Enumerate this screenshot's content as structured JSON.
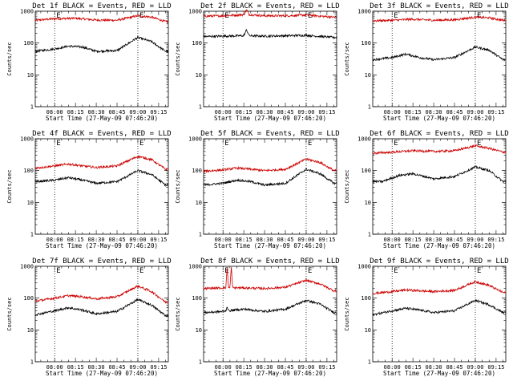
{
  "chart_data": [
    {
      "type": "line",
      "title": "Det 1f BLACK = Events, RED = LLD",
      "xlabel": "Start Time (27-May-09 07:46:20)",
      "ylabel": "Counts/sec",
      "ylog": true,
      "ylim": [
        1,
        1000
      ],
      "xlim": [
        "07:46",
        "09:22"
      ],
      "x_ticks": [
        "08:00",
        "08:15",
        "08:30",
        "08:45",
        "09:00",
        "09:15"
      ],
      "y_ticks": [
        "1",
        "10",
        "100",
        "1000"
      ],
      "markers": [
        "08:00",
        "09:00"
      ],
      "annotations": [
        "E",
        "E"
      ],
      "series": [
        {
          "color": "#cc0000",
          "points": [
            [
              "07:46",
              520
            ],
            [
              "08:00",
              580
            ],
            [
              "08:15",
              600
            ],
            [
              "08:30",
              530
            ],
            [
              "08:45",
              520
            ],
            [
              "09:00",
              720
            ],
            [
              "09:10",
              650
            ],
            [
              "09:20",
              470
            ]
          ]
        },
        {
          "color": "#000000",
          "points": [
            [
              "07:46",
              55
            ],
            [
              "08:00",
              65
            ],
            [
              "08:10",
              80
            ],
            [
              "08:20",
              75
            ],
            [
              "08:30",
              55
            ],
            [
              "08:45",
              58
            ],
            [
              "09:00",
              150
            ],
            [
              "09:10",
              110
            ],
            [
              "09:20",
              55
            ]
          ]
        }
      ]
    },
    {
      "type": "line",
      "title": "Det 2f BLACK = Events, RED = LLD",
      "xlabel": "Start Time (27-May-09 07:46:20)",
      "ylabel": "Counts/sec",
      "ylog": true,
      "ylim": [
        1,
        1000
      ],
      "xlim": [
        "07:46",
        "09:22"
      ],
      "x_ticks": [
        "08:00",
        "08:15",
        "08:30",
        "08:45",
        "09:00",
        "09:15"
      ],
      "y_ticks": [
        "1",
        "10",
        "100",
        "1000"
      ],
      "markers": [
        "08:00",
        "09:00"
      ],
      "annotations": [
        "E",
        "E"
      ],
      "series": [
        {
          "color": "#cc0000",
          "points": [
            [
              "07:46",
              700
            ],
            [
              "08:00",
              720
            ],
            [
              "08:15",
              780
            ],
            [
              "08:17",
              1100
            ],
            [
              "08:19",
              780
            ],
            [
              "08:30",
              720
            ],
            [
              "08:45",
              720
            ],
            [
              "09:00",
              760
            ],
            [
              "09:20",
              650
            ]
          ]
        },
        {
          "color": "#000000",
          "points": [
            [
              "07:46",
              160
            ],
            [
              "08:00",
              165
            ],
            [
              "08:15",
              170
            ],
            [
              "08:17",
              260
            ],
            [
              "08:19",
              170
            ],
            [
              "08:30",
              165
            ],
            [
              "08:45",
              170
            ],
            [
              "09:00",
              175
            ],
            [
              "09:20",
              150
            ]
          ]
        }
      ]
    },
    {
      "type": "line",
      "title": "Det 3f BLACK = Events, RED = LLD",
      "xlabel": "Start Time (27-May-09 07:46:20)",
      "ylabel": "Counts/sec",
      "ylog": true,
      "ylim": [
        1,
        1000
      ],
      "xlim": [
        "07:46",
        "09:22"
      ],
      "x_ticks": [
        "08:00",
        "08:15",
        "08:30",
        "08:45",
        "09:00",
        "09:15"
      ],
      "y_ticks": [
        "1",
        "10",
        "100",
        "1000"
      ],
      "markers": [
        "08:00",
        "09:00"
      ],
      "annotations": [
        "E",
        "E"
      ],
      "series": [
        {
          "color": "#cc0000",
          "points": [
            [
              "07:46",
              500
            ],
            [
              "08:00",
              520
            ],
            [
              "08:15",
              560
            ],
            [
              "08:30",
              520
            ],
            [
              "08:45",
              540
            ],
            [
              "09:00",
              650
            ],
            [
              "09:10",
              620
            ],
            [
              "09:20",
              520
            ]
          ]
        },
        {
          "color": "#000000",
          "points": [
            [
              "07:46",
              30
            ],
            [
              "08:00",
              35
            ],
            [
              "08:10",
              45
            ],
            [
              "08:20",
              35
            ],
            [
              "08:30",
              30
            ],
            [
              "08:45",
              35
            ],
            [
              "09:00",
              75
            ],
            [
              "09:10",
              60
            ],
            [
              "09:20",
              30
            ]
          ]
        }
      ]
    },
    {
      "type": "line",
      "title": "Det 4f BLACK = Events, RED = LLD",
      "xlabel": "Start Time (27-May-09 07:46:20)",
      "ylabel": "Counts/sec",
      "ylog": true,
      "ylim": [
        1,
        1000
      ],
      "xlim": [
        "07:46",
        "09:22"
      ],
      "x_ticks": [
        "08:00",
        "08:15",
        "08:30",
        "08:45",
        "09:00",
        "09:15"
      ],
      "y_ticks": [
        "1",
        "10",
        "100",
        "1000"
      ],
      "markers": [
        "08:00",
        "09:00"
      ],
      "annotations": [
        "E",
        "E"
      ],
      "series": [
        {
          "color": "#cc0000",
          "points": [
            [
              "07:46",
              120
            ],
            [
              "08:00",
              140
            ],
            [
              "08:10",
              160
            ],
            [
              "08:20",
              140
            ],
            [
              "08:30",
              125
            ],
            [
              "08:45",
              140
            ],
            [
              "09:00",
              280
            ],
            [
              "09:10",
              220
            ],
            [
              "09:20",
              110
            ]
          ]
        },
        {
          "color": "#000000",
          "points": [
            [
              "07:46",
              45
            ],
            [
              "08:00",
              50
            ],
            [
              "08:10",
              60
            ],
            [
              "08:20",
              50
            ],
            [
              "08:30",
              40
            ],
            [
              "08:45",
              45
            ],
            [
              "09:00",
              100
            ],
            [
              "09:10",
              75
            ],
            [
              "09:20",
              35
            ]
          ]
        }
      ]
    },
    {
      "type": "line",
      "title": "Det 5f BLACK = Events, RED = LLD",
      "xlabel": "Start Time (27-May-09 07:46:20)",
      "ylabel": "Counts/sec",
      "ylog": true,
      "ylim": [
        1,
        1000
      ],
      "xlim": [
        "07:46",
        "09:22"
      ],
      "x_ticks": [
        "08:00",
        "08:15",
        "08:30",
        "08:45",
        "09:00",
        "09:15"
      ],
      "y_ticks": [
        "1",
        "10",
        "100",
        "1000"
      ],
      "markers": [
        "08:00",
        "09:00"
      ],
      "annotations": [
        "E",
        "E"
      ],
      "series": [
        {
          "color": "#cc0000",
          "points": [
            [
              "07:46",
              95
            ],
            [
              "08:00",
              105
            ],
            [
              "08:10",
              120
            ],
            [
              "08:20",
              110
            ],
            [
              "08:30",
              100
            ],
            [
              "08:45",
              110
            ],
            [
              "09:00",
              230
            ],
            [
              "09:10",
              180
            ],
            [
              "09:20",
              100
            ]
          ]
        },
        {
          "color": "#000000",
          "points": [
            [
              "07:46",
              35
            ],
            [
              "08:00",
              40
            ],
            [
              "08:10",
              50
            ],
            [
              "08:20",
              45
            ],
            [
              "08:30",
              35
            ],
            [
              "08:45",
              40
            ],
            [
              "09:00",
              110
            ],
            [
              "09:10",
              80
            ],
            [
              "09:20",
              40
            ]
          ]
        }
      ]
    },
    {
      "type": "line",
      "title": "Det 6f BLACK = Events, RED = LLD",
      "xlabel": "Start Time (27-May-09 07:46:20)",
      "ylabel": "Counts/sec",
      "ylog": true,
      "ylim": [
        1,
        1000
      ],
      "xlim": [
        "07:46",
        "09:22"
      ],
      "x_ticks": [
        "08:00",
        "08:15",
        "08:30",
        "08:45",
        "09:00",
        "09:15"
      ],
      "y_ticks": [
        "1",
        "10",
        "100",
        "1000"
      ],
      "markers": [
        "08:00",
        "09:00"
      ],
      "annotations": [
        "E",
        "E"
      ],
      "series": [
        {
          "color": "#cc0000",
          "points": [
            [
              "07:46",
              350
            ],
            [
              "08:00",
              380
            ],
            [
              "08:15",
              420
            ],
            [
              "08:30",
              400
            ],
            [
              "08:45",
              420
            ],
            [
              "09:00",
              600
            ],
            [
              "09:10",
              500
            ],
            [
              "09:20",
              380
            ]
          ]
        },
        {
          "color": "#000000",
          "points": [
            [
              "07:46",
              45
            ],
            [
              "07:53",
              45
            ],
            [
              "07:58",
              55
            ],
            [
              "08:05",
              70
            ],
            [
              "08:15",
              80
            ],
            [
              "08:30",
              55
            ],
            [
              "08:45",
              65
            ],
            [
              "09:00",
              130
            ],
            [
              "09:10",
              100
            ],
            [
              "09:20",
              45
            ]
          ]
        }
      ]
    },
    {
      "type": "line",
      "title": "Det 7f BLACK = Events, RED = LLD",
      "xlabel": "Start Time (27-May-09 07:46:20)",
      "ylabel": "Counts/sec",
      "ylog": true,
      "ylim": [
        1,
        1000
      ],
      "xlim": [
        "07:46",
        "09:22"
      ],
      "x_ticks": [
        "08:00",
        "08:15",
        "08:30",
        "08:45",
        "09:00",
        "09:15"
      ],
      "y_ticks": [
        "1",
        "10",
        "100",
        "1000"
      ],
      "markers": [
        "08:00",
        "09:00"
      ],
      "annotations": [
        "E",
        "E"
      ],
      "series": [
        {
          "color": "#cc0000",
          "points": [
            [
              "07:46",
              80
            ],
            [
              "08:00",
              100
            ],
            [
              "08:10",
              120
            ],
            [
              "08:20",
              110
            ],
            [
              "08:30",
              95
            ],
            [
              "08:45",
              110
            ],
            [
              "09:00",
              240
            ],
            [
              "09:10",
              160
            ],
            [
              "09:20",
              75
            ]
          ]
        },
        {
          "color": "#000000",
          "points": [
            [
              "07:46",
              30
            ],
            [
              "08:00",
              40
            ],
            [
              "08:10",
              50
            ],
            [
              "08:20",
              42
            ],
            [
              "08:30",
              32
            ],
            [
              "08:45",
              38
            ],
            [
              "09:00",
              90
            ],
            [
              "09:10",
              60
            ],
            [
              "09:20",
              28
            ]
          ]
        }
      ]
    },
    {
      "type": "line",
      "title": "Det 8f BLACK = Events, RED = LLD",
      "xlabel": "Start Time (27-May-09 07:46:20)",
      "ylabel": "Counts/sec",
      "ylog": true,
      "ylim": [
        1,
        1000
      ],
      "xlim": [
        "07:46",
        "09:22"
      ],
      "x_ticks": [
        "08:00",
        "08:15",
        "08:30",
        "08:45",
        "09:00",
        "09:15"
      ],
      "y_ticks": [
        "1",
        "10",
        "100",
        "1000"
      ],
      "markers": [
        "08:00",
        "09:00"
      ],
      "annotations": [
        "E",
        "E"
      ],
      "series": [
        {
          "color": "#cc0000",
          "points": [
            [
              "07:46",
              200
            ],
            [
              "08:00",
              210
            ],
            [
              "08:02",
              210
            ],
            [
              "08:03",
              1000
            ],
            [
              "08:04",
              210
            ],
            [
              "08:05",
              210
            ],
            [
              "08:06",
              1000
            ],
            [
              "08:07",
              210
            ],
            [
              "08:15",
              210
            ],
            [
              "08:30",
              200
            ],
            [
              "08:45",
              220
            ],
            [
              "09:00",
              360
            ],
            [
              "09:10",
              280
            ],
            [
              "09:20",
              170
            ]
          ]
        },
        {
          "color": "#000000",
          "points": [
            [
              "07:46",
              35
            ],
            [
              "08:00",
              38
            ],
            [
              "08:02",
              40
            ],
            [
              "08:03",
              55
            ],
            [
              "08:04",
              40
            ],
            [
              "08:15",
              45
            ],
            [
              "08:30",
              38
            ],
            [
              "08:45",
              45
            ],
            [
              "09:00",
              85
            ],
            [
              "09:10",
              65
            ],
            [
              "09:20",
              35
            ]
          ]
        }
      ]
    },
    {
      "type": "line",
      "title": "Det 9f BLACK = Events, RED = LLD",
      "xlabel": "Start Time (27-May-09 07:46:20)",
      "ylabel": "Counts/sec",
      "ylog": true,
      "ylim": [
        1,
        1000
      ],
      "xlim": [
        "07:46",
        "09:22"
      ],
      "x_ticks": [
        "08:00",
        "08:15",
        "08:30",
        "08:45",
        "09:00",
        "09:15"
      ],
      "y_ticks": [
        "1",
        "10",
        "100",
        "1000"
      ],
      "markers": [
        "08:00",
        "09:00"
      ],
      "annotations": [
        "E",
        "E"
      ],
      "series": [
        {
          "color": "#cc0000",
          "points": [
            [
              "07:46",
              140
            ],
            [
              "08:00",
              160
            ],
            [
              "08:10",
              180
            ],
            [
              "08:20",
              170
            ],
            [
              "08:30",
              160
            ],
            [
              "08:45",
              175
            ],
            [
              "09:00",
              330
            ],
            [
              "09:10",
              250
            ],
            [
              "09:20",
              150
            ]
          ]
        },
        {
          "color": "#000000",
          "points": [
            [
              "07:46",
              30
            ],
            [
              "08:00",
              40
            ],
            [
              "08:10",
              48
            ],
            [
              "08:20",
              42
            ],
            [
              "08:30",
              35
            ],
            [
              "08:45",
              40
            ],
            [
              "09:00",
              85
            ],
            [
              "09:10",
              62
            ],
            [
              "09:20",
              35
            ]
          ]
        }
      ]
    }
  ]
}
